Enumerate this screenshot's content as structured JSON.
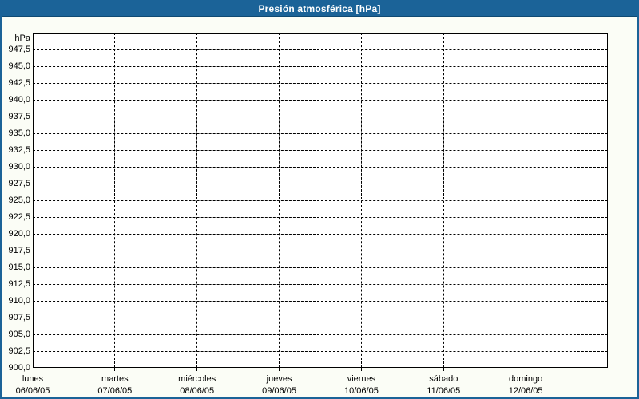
{
  "window": {
    "title": "Presión atmosférica [hPa]"
  },
  "colors": {
    "frame": "#1b6398",
    "frame_dark_edge": "#0f4a73",
    "title_text": "#ffffff",
    "background": "#fbfdf6",
    "plot_background": "#ffffff",
    "axis": "#000000",
    "grid": "#000000",
    "text": "#000000"
  },
  "chart_data": {
    "type": "line",
    "title": "Presión atmosférica [hPa]",
    "ylabel": "hPa",
    "xlabel": "",
    "ylim": [
      900,
      950
    ],
    "ytick_step": 2.5,
    "grid": true,
    "grid_style": "dashed",
    "legend": "none",
    "yticks": [
      {
        "value": 947.5,
        "label": "947,5"
      },
      {
        "value": 945.0,
        "label": "945,0"
      },
      {
        "value": 942.5,
        "label": "942,5"
      },
      {
        "value": 940.0,
        "label": "940,0"
      },
      {
        "value": 937.5,
        "label": "937,5"
      },
      {
        "value": 935.0,
        "label": "935,0"
      },
      {
        "value": 932.5,
        "label": "932,5"
      },
      {
        "value": 930.0,
        "label": "930,0"
      },
      {
        "value": 927.5,
        "label": "927,5"
      },
      {
        "value": 925.0,
        "label": "925,0"
      },
      {
        "value": 922.5,
        "label": "922,5"
      },
      {
        "value": 920.0,
        "label": "920,0"
      },
      {
        "value": 917.5,
        "label": "917,5"
      },
      {
        "value": 915.0,
        "label": "915,0"
      },
      {
        "value": 912.5,
        "label": "912,5"
      },
      {
        "value": 910.0,
        "label": "910,0"
      },
      {
        "value": 907.5,
        "label": "907,5"
      },
      {
        "value": 905.0,
        "label": "905,0"
      },
      {
        "value": 902.5,
        "label": "902,5"
      },
      {
        "value": 900.0,
        "label": "900,0"
      }
    ],
    "categories": [
      {
        "name": "lunes",
        "date": "06/06/05"
      },
      {
        "name": "martes",
        "date": "07/06/05"
      },
      {
        "name": "miércoles",
        "date": "08/06/05"
      },
      {
        "name": "jueves",
        "date": "09/06/05"
      },
      {
        "name": "viernes",
        "date": "10/06/05"
      },
      {
        "name": "sábado",
        "date": "11/06/05"
      },
      {
        "name": "domingo",
        "date": "12/06/05"
      }
    ],
    "series": []
  }
}
